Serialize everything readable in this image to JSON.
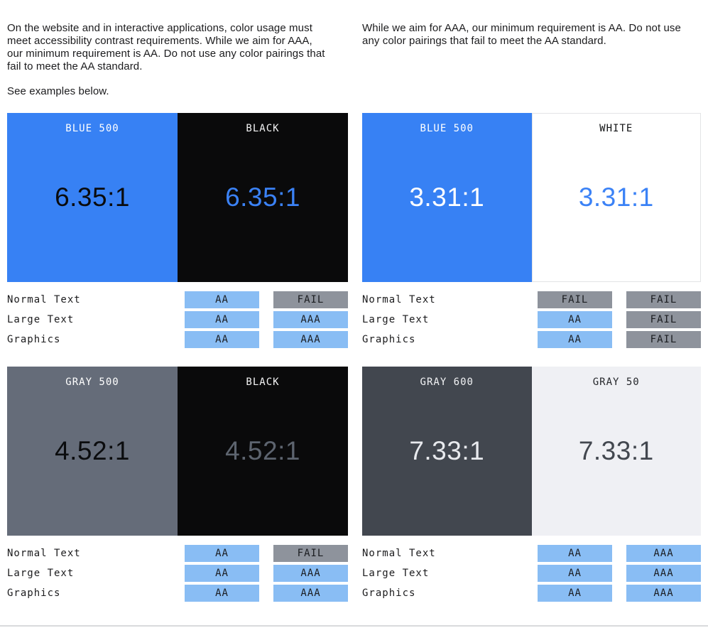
{
  "intro": {
    "left_paragraph": "On the website and in interactive applications, color usage must\nmeet accessibility contrast requirements. While we aim for AAA,\nour minimum requirement is AA. Do not use any color pairings that\nfail to meet the AA standard.",
    "left_note": "See examples below.",
    "right_paragraph": "While we aim for AAA, our minimum requirement is AA. Do not use\nany color pairings that fail to meet the AA standard."
  },
  "colors": {
    "pass_badge": "#89bdf4",
    "fail_badge": "#8e939c",
    "badge_text": "#1b1d21",
    "body_text": "#1b1b1d",
    "divider": "#d9dadc"
  },
  "cards": [
    {
      "name": "blue-500-vs-black",
      "panels": [
        {
          "label": "BLUE 500",
          "ratio": "6.35:1",
          "bg": "#3781f4",
          "label_color": "#ffffff",
          "ratio_color": "#0a0b0d"
        },
        {
          "label": "BLACK",
          "ratio": "6.35:1",
          "bg": "#0a0a0b",
          "label_color": "#f4f4f5",
          "ratio_color": "#3b82f6"
        }
      ],
      "rows": [
        {
          "label": "Normal Text",
          "badges": [
            {
              "text": "AA",
              "status": "pass"
            },
            {
              "text": "FAIL",
              "status": "fail"
            }
          ]
        },
        {
          "label": "Large Text",
          "badges": [
            {
              "text": "AA",
              "status": "pass"
            },
            {
              "text": "AAA",
              "status": "pass"
            }
          ]
        },
        {
          "label": "Graphics",
          "badges": [
            {
              "text": "AA",
              "status": "pass"
            },
            {
              "text": "AAA",
              "status": "pass"
            }
          ]
        }
      ]
    },
    {
      "name": "blue-500-vs-white",
      "panels": [
        {
          "label": "BLUE 500",
          "ratio": "3.31:1",
          "bg": "#3781f4",
          "label_color": "#ffffff",
          "ratio_color": "#ffffff"
        },
        {
          "label": "WHITE",
          "ratio": "3.31:1",
          "bg": "#ffffff",
          "label_color": "#101113",
          "ratio_color": "#3b82f6",
          "border": "#e3e4e6"
        }
      ],
      "rows": [
        {
          "label": "Normal Text",
          "badges": [
            {
              "text": "FAIL",
              "status": "fail"
            },
            {
              "text": "FAIL",
              "status": "fail"
            }
          ]
        },
        {
          "label": "Large Text",
          "badges": [
            {
              "text": "AA",
              "status": "pass"
            },
            {
              "text": "FAIL",
              "status": "fail"
            }
          ]
        },
        {
          "label": "Graphics",
          "badges": [
            {
              "text": "AA",
              "status": "pass"
            },
            {
              "text": "FAIL",
              "status": "fail"
            }
          ]
        }
      ]
    },
    {
      "name": "gray-500-vs-black",
      "panels": [
        {
          "label": "GRAY 500",
          "ratio": "4.52:1",
          "bg": "#656c79",
          "label_color": "#ffffff",
          "ratio_color": "#0b0c0e"
        },
        {
          "label": "BLACK",
          "ratio": "4.52:1",
          "bg": "#0a0a0b",
          "label_color": "#f4f4f5",
          "ratio_color": "#5d646f"
        }
      ],
      "rows": [
        {
          "label": "Normal Text",
          "badges": [
            {
              "text": "AA",
              "status": "pass"
            },
            {
              "text": "FAIL",
              "status": "fail"
            }
          ]
        },
        {
          "label": "Large Text",
          "badges": [
            {
              "text": "AA",
              "status": "pass"
            },
            {
              "text": "AAA",
              "status": "pass"
            }
          ]
        },
        {
          "label": "Graphics",
          "badges": [
            {
              "text": "AA",
              "status": "pass"
            },
            {
              "text": "AAA",
              "status": "pass"
            }
          ]
        }
      ]
    },
    {
      "name": "gray-600-vs-gray-50",
      "panels": [
        {
          "label": "GRAY 600",
          "ratio": "7.33:1",
          "bg": "#42474f",
          "label_color": "#f2f3f5",
          "ratio_color": "#e8eaee"
        },
        {
          "label": "GRAY 50",
          "ratio": "7.33:1",
          "bg": "#eff0f4",
          "label_color": "#26282c",
          "ratio_color": "#42474f"
        }
      ],
      "rows": [
        {
          "label": "Normal Text",
          "badges": [
            {
              "text": "AA",
              "status": "pass"
            },
            {
              "text": "AAA",
              "status": "pass"
            }
          ]
        },
        {
          "label": "Large Text",
          "badges": [
            {
              "text": "AA",
              "status": "pass"
            },
            {
              "text": "AAA",
              "status": "pass"
            }
          ]
        },
        {
          "label": "Graphics",
          "badges": [
            {
              "text": "AA",
              "status": "pass"
            },
            {
              "text": "AAA",
              "status": "pass"
            }
          ]
        }
      ]
    }
  ]
}
